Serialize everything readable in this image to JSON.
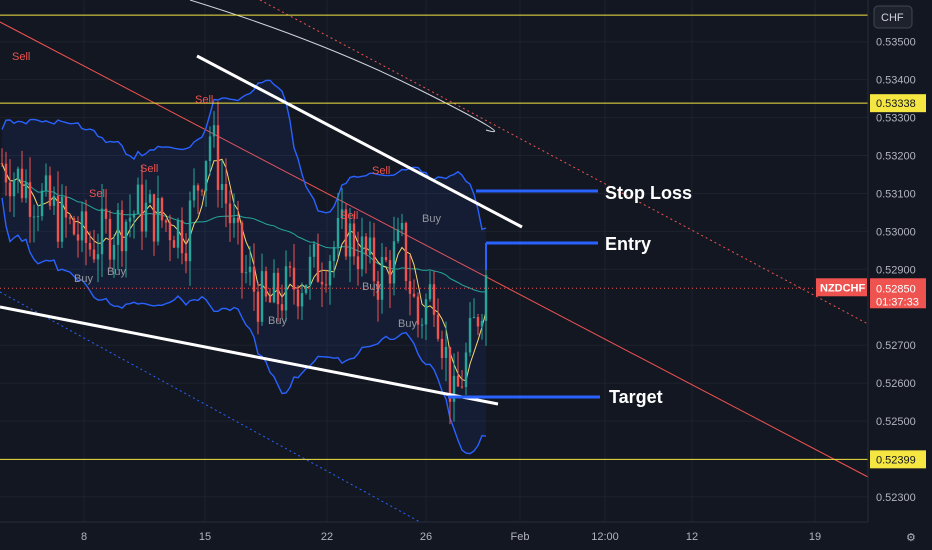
{
  "chart_data": {
    "type": "candlestick",
    "symbol": "NZDCHF",
    "currency": "CHF",
    "countdown": "01:37:33",
    "y_ticks": [
      "0.53500",
      "0.53400",
      "0.53300",
      "0.53200",
      "0.53100",
      "0.53000",
      "0.52900",
      "0.52700",
      "0.52600",
      "0.52500",
      "0.52300",
      "0.52200"
    ],
    "x_ticks": [
      "8",
      "15",
      "22",
      "26",
      "Feb",
      "12:00",
      "12",
      "19"
    ],
    "horizontal_levels": [
      {
        "value": 0.5357,
        "label": ""
      },
      {
        "value": 0.53338,
        "label": "0.53338"
      },
      {
        "value": 0.52399,
        "label": "0.52399"
      }
    ],
    "current_price": "0.52850",
    "annotations": [
      "Stop Loss",
      "Entry",
      "Target"
    ],
    "signals": [
      {
        "label": "Sell",
        "type": "sell"
      },
      {
        "label": "Sell",
        "type": "sell"
      },
      {
        "label": "Sell",
        "type": "sell"
      },
      {
        "label": "Sell",
        "type": "sell"
      },
      {
        "label": "Sell",
        "type": "sell"
      },
      {
        "label": "Sell",
        "type": "sell"
      },
      {
        "label": "Buy",
        "type": "buy"
      },
      {
        "label": "Buy",
        "type": "buy"
      },
      {
        "label": "Buy",
        "type": "buy"
      },
      {
        "label": "Buy",
        "type": "buy"
      },
      {
        "label": "Buy",
        "type": "buy"
      },
      {
        "label": "Buy",
        "type": "buy"
      }
    ],
    "ylim": [
      0.5216,
      0.5361
    ],
    "colors": {
      "background": "#131722",
      "up": "#26a69a",
      "down": "#ef5350",
      "level": "#f5e642",
      "band": "#2962ff",
      "signal_sell": "#ef5350",
      "signal_buy": "#9598a1"
    }
  }
}
